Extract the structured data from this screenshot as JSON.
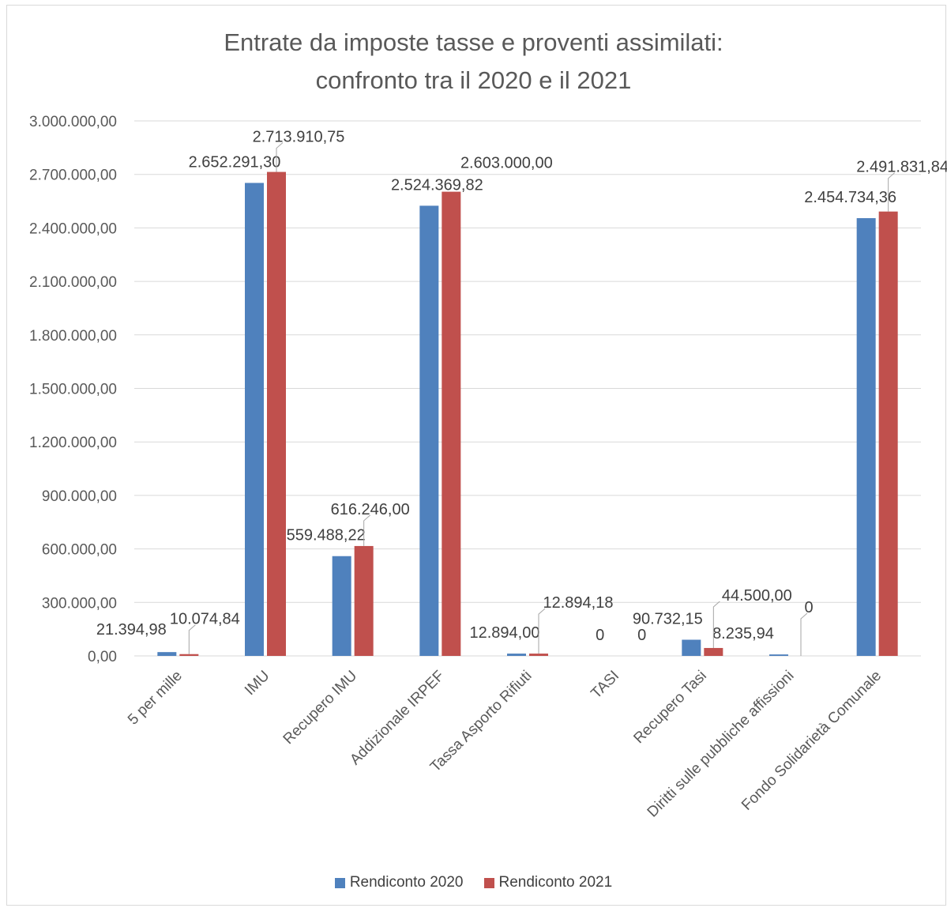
{
  "chart_data": {
    "type": "bar",
    "title": "Entrate da imposte tasse e proventi assimilati:",
    "subtitle": "confronto tra il 2020 e il 2021",
    "xlabel": "",
    "ylabel": "",
    "ylim": [
      0,
      3000000
    ],
    "y_ticks": [
      0,
      300000,
      600000,
      900000,
      1200000,
      1500000,
      1800000,
      2100000,
      2400000,
      2700000,
      3000000
    ],
    "y_tick_labels": [
      "0,00",
      "300.000,00",
      "600.000,00",
      "900.000,00",
      "1.200.000,00",
      "1.500.000,00",
      "1.800.000,00",
      "2.100.000,00",
      "2.400.000,00",
      "2.700.000,00",
      "3.000.000,00"
    ],
    "grid": true,
    "legend_position": "bottom",
    "categories": [
      "5 per mille",
      "IMU",
      "Recupero IMU",
      "Addizionale IRPEF",
      "Tassa Asporto Rifiuti",
      "TASI",
      "Recupero Tasi",
      "Diritti sulle pubbliche affissioni",
      "Fondo Solidarietà Comunale"
    ],
    "series": [
      {
        "name": "Rendiconto 2020",
        "color": "#4f81bd",
        "values": [
          21394.98,
          2652291.3,
          559488.22,
          2524369.82,
          12894.0,
          0,
          90732.15,
          8235.94,
          2454734.36
        ],
        "labels": [
          "21.394,98",
          "2.652.291,30",
          "559.488,22",
          "2.524.369,82",
          "12.894,00",
          "0",
          "90.732,15",
          "8.235,94",
          "2.454.734,36"
        ]
      },
      {
        "name": "Rendiconto 2021",
        "color": "#c0504d",
        "values": [
          10074.84,
          2713910.75,
          616246.0,
          2603000.0,
          12894.18,
          0,
          44500.0,
          0,
          2491831.84
        ],
        "labels": [
          "10.074,84",
          "2.713.910,75",
          "616.246,00",
          "2.603.000,00",
          "12.894,18",
          "0",
          "44.500,00",
          "0",
          "2.491.831,84"
        ]
      }
    ]
  }
}
